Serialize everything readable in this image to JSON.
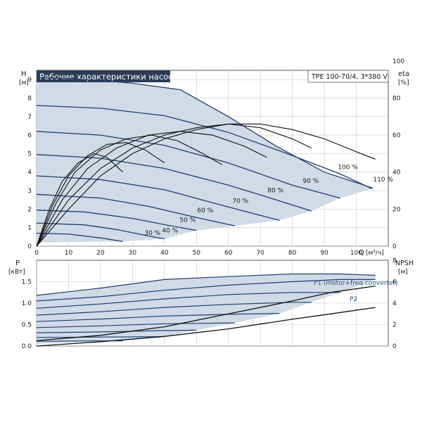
{
  "chart_data": [
    {
      "type": "line",
      "panel": "head",
      "title": "Рабочие характеристики насоса",
      "model_label": "TPE 100-70/4, 3*380 V",
      "ylabel": "H",
      "yunit": "[м]",
      "xlabel": "Q",
      "xunit": "[м³/ч]",
      "right_label": "eta",
      "right_unit": "[%]",
      "xlim": [
        0,
        110
      ],
      "ylim": [
        0,
        9.5
      ],
      "xticks": [
        "0",
        "10",
        "20",
        "30",
        "40",
        "50",
        "60",
        "70",
        "80",
        "90",
        "100"
      ],
      "yticks": [
        "0",
        "1",
        "2",
        "3",
        "4",
        "5",
        "6",
        "7",
        "8",
        "9"
      ],
      "right_ticks": [
        "0",
        "20",
        "40",
        "60",
        "80",
        "100"
      ],
      "right_scale_per_m": 10,
      "grid": true,
      "colors": {
        "curve": "#1d3e73",
        "eta_curve": "#111111",
        "area_fill": "#d0dbe6",
        "title_bg": "#2c3e55",
        "title_text": "#ffffff"
      },
      "head_curves": [
        {
          "label": "110 %",
          "points": [
            [
              0,
              9.1
            ],
            [
              10,
              9.05
            ],
            [
              20,
              8.95
            ],
            [
              30,
              8.8
            ],
            [
              45,
              8.45
            ],
            [
              60,
              7.0
            ],
            [
              75,
              5.4
            ],
            [
              90,
              4.0
            ],
            [
              105,
              3.15
            ]
          ]
        },
        {
          "label": "100 %",
          "points": [
            [
              0,
              7.6
            ],
            [
              20,
              7.45
            ],
            [
              40,
              7.05
            ],
            [
              60,
              6.15
            ],
            [
              80,
              4.9
            ],
            [
              95,
              3.9
            ],
            [
              105,
              3.1
            ]
          ]
        },
        {
          "label": "90 %",
          "points": [
            [
              0,
              6.2
            ],
            [
              20,
              6.0
            ],
            [
              40,
              5.45
            ],
            [
              60,
              4.5
            ],
            [
              80,
              3.3
            ],
            [
              95,
              2.6
            ]
          ]
        },
        {
          "label": "80 %",
          "points": [
            [
              0,
              4.95
            ],
            [
              20,
              4.75
            ],
            [
              40,
              4.2
            ],
            [
              60,
              3.3
            ],
            [
              75,
              2.5
            ],
            [
              86,
              1.9
            ]
          ]
        },
        {
          "label": "70 %",
          "points": [
            [
              0,
              3.8
            ],
            [
              20,
              3.6
            ],
            [
              40,
              3.05
            ],
            [
              55,
              2.35
            ],
            [
              68,
              1.75
            ],
            [
              76,
              1.4
            ]
          ]
        },
        {
          "label": "60 %",
          "points": [
            [
              0,
              2.8
            ],
            [
              20,
              2.6
            ],
            [
              35,
              2.15
            ],
            [
              50,
              1.55
            ],
            [
              62,
              1.1
            ]
          ]
        },
        {
          "label": "50 %",
          "points": [
            [
              0,
              1.95
            ],
            [
              15,
              1.85
            ],
            [
              30,
              1.5
            ],
            [
              42,
              1.1
            ],
            [
              50,
              0.85
            ]
          ]
        },
        {
          "label": "40 %",
          "points": [
            [
              0,
              1.25
            ],
            [
              15,
              1.15
            ],
            [
              25,
              0.9
            ],
            [
              35,
              0.55
            ],
            [
              40,
              0.4
            ]
          ]
        },
        {
          "label": "30 %",
          "points": [
            [
              0,
              0.7
            ],
            [
              10,
              0.65
            ],
            [
              20,
              0.45
            ],
            [
              27,
              0.25
            ]
          ]
        }
      ],
      "eta_curves": [
        {
          "points": [
            [
              0,
              0
            ],
            [
              10,
              20
            ],
            [
              20,
              38
            ],
            [
              30,
              50
            ],
            [
              40,
              58
            ],
            [
              50,
              63
            ],
            [
              60,
              66
            ],
            [
              70,
              66
            ],
            [
              80,
              63
            ],
            [
              90,
              58
            ],
            [
              100,
              51
            ],
            [
              106,
              47
            ]
          ]
        },
        {
          "points": [
            [
              0,
              0
            ],
            [
              10,
              25
            ],
            [
              20,
              42
            ],
            [
              30,
              53
            ],
            [
              40,
              60
            ],
            [
              50,
              64
            ],
            [
              60,
              66
            ],
            [
              70,
              64
            ],
            [
              80,
              58
            ],
            [
              86,
              53
            ]
          ]
        },
        {
          "points": [
            [
              0,
              0
            ],
            [
              8,
              25
            ],
            [
              16,
              42
            ],
            [
              25,
              53
            ],
            [
              35,
              60
            ],
            [
              45,
              62
            ],
            [
              55,
              60
            ],
            [
              65,
              54
            ],
            [
              72,
              48
            ]
          ]
        },
        {
          "points": [
            [
              0,
              0
            ],
            [
              6,
              23
            ],
            [
              12,
              40
            ],
            [
              20,
              52
            ],
            [
              28,
              58
            ],
            [
              36,
              60
            ],
            [
              44,
              57
            ],
            [
              52,
              50
            ],
            [
              58,
              44
            ]
          ]
        },
        {
          "points": [
            [
              0,
              0
            ],
            [
              5,
              22
            ],
            [
              10,
              38
            ],
            [
              16,
              49
            ],
            [
              22,
              55
            ],
            [
              28,
              56
            ],
            [
              34,
              52
            ],
            [
              40,
              45
            ]
          ]
        },
        {
          "points": [
            [
              0,
              0
            ],
            [
              4,
              20
            ],
            [
              8,
              35
            ],
            [
              13,
              45
            ],
            [
              18,
              50
            ],
            [
              22,
              48
            ],
            [
              27,
              40
            ]
          ]
        }
      ]
    },
    {
      "type": "line",
      "panel": "power",
      "ylabel": "P",
      "yunit": "[кВт]",
      "right_label": "NPSH",
      "right_unit": "[м]",
      "xlim": [
        0,
        110
      ],
      "ylim": [
        0,
        2.0
      ],
      "yticks": [
        "0.0",
        "0.5",
        "1.0",
        "1.5"
      ],
      "right_ticks": [
        "0",
        "2",
        "4",
        "6",
        "8"
      ],
      "right_per_kw": 4,
      "grid": true,
      "series_labels": [
        "P1 (motor+freq.converter)",
        "P2"
      ],
      "power_curves": [
        {
          "points": [
            [
              0,
              1.18
            ],
            [
              20,
              1.35
            ],
            [
              40,
              1.55
            ],
            [
              60,
              1.62
            ],
            [
              80,
              1.68
            ],
            [
              95,
              1.68
            ],
            [
              106,
              1.65
            ]
          ]
        },
        {
          "points": [
            [
              0,
              1.05
            ],
            [
              20,
              1.15
            ],
            [
              40,
              1.3
            ],
            [
              60,
              1.42
            ],
            [
              80,
              1.5
            ],
            [
              95,
              1.55
            ],
            [
              106,
              1.55
            ]
          ]
        },
        {
          "points": [
            [
              0,
              0.88
            ],
            [
              20,
              0.98
            ],
            [
              40,
              1.1
            ],
            [
              60,
              1.2
            ],
            [
              80,
              1.25
            ],
            [
              95,
              1.25
            ]
          ]
        },
        {
          "points": [
            [
              0,
              0.72
            ],
            [
              20,
              0.8
            ],
            [
              40,
              0.9
            ],
            [
              60,
              0.97
            ],
            [
              80,
              1.02
            ],
            [
              86,
              1.02
            ]
          ]
        },
        {
          "points": [
            [
              0,
              0.57
            ],
            [
              20,
              0.63
            ],
            [
              40,
              0.7
            ],
            [
              60,
              0.74
            ],
            [
              76,
              0.76
            ]
          ]
        },
        {
          "points": [
            [
              0,
              0.43
            ],
            [
              20,
              0.47
            ],
            [
              40,
              0.52
            ],
            [
              62,
              0.54
            ]
          ]
        },
        {
          "points": [
            [
              0,
              0.31
            ],
            [
              20,
              0.33
            ],
            [
              40,
              0.36
            ],
            [
              50,
              0.37
            ]
          ]
        },
        {
          "points": [
            [
              0,
              0.2
            ],
            [
              20,
              0.21
            ],
            [
              40,
              0.22
            ]
          ]
        },
        {
          "points": [
            [
              0,
              0.11
            ],
            [
              15,
              0.12
            ],
            [
              27,
              0.12
            ]
          ]
        }
      ],
      "npsh_points": [
        [
          0,
          0.5
        ],
        [
          20,
          1.0
        ],
        [
          40,
          1.8
        ],
        [
          60,
          3.0
        ],
        [
          80,
          4.2
        ],
        [
          92,
          5.0
        ],
        [
          106,
          5.6
        ]
      ],
      "npsh_fan_points": [
        [
          0,
          0
        ],
        [
          20,
          0.4
        ],
        [
          40,
          0.9
        ],
        [
          60,
          1.6
        ],
        [
          80,
          2.5
        ],
        [
          92,
          3.0
        ],
        [
          106,
          3.6
        ]
      ]
    }
  ]
}
